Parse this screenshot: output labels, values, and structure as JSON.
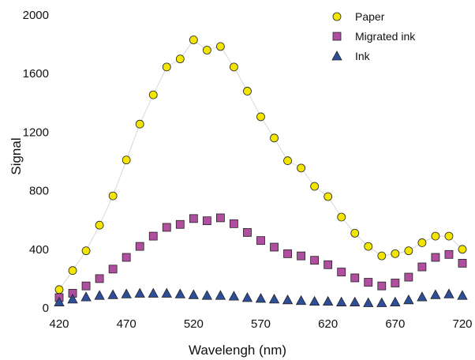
{
  "chart_data": {
    "type": "scatter",
    "xlabel": "Wavelengh (nm)",
    "ylabel": "Signal",
    "xlim": [
      420,
      720
    ],
    "ylim": [
      0,
      2000
    ],
    "x_ticks": [
      "420",
      "470",
      "520",
      "570",
      "620",
      "670",
      "720"
    ],
    "y_ticks": [
      "0",
      "400",
      "800",
      "1200",
      "1600",
      "2000"
    ],
    "grid": false,
    "legend_position": "top-right",
    "x": [
      420,
      430,
      440,
      450,
      460,
      470,
      480,
      490,
      500,
      510,
      520,
      530,
      540,
      550,
      560,
      570,
      580,
      590,
      600,
      610,
      620,
      630,
      640,
      650,
      660,
      670,
      680,
      690,
      700,
      710,
      720
    ],
    "series": [
      {
        "name": "Paper",
        "marker": "circle",
        "color": "#f2e600",
        "line_color": "#d8d8d8",
        "values": [
          125,
          255,
          390,
          565,
          765,
          1010,
          1255,
          1455,
          1645,
          1700,
          1830,
          1760,
          1785,
          1645,
          1480,
          1305,
          1160,
          1005,
          955,
          830,
          760,
          620,
          510,
          420,
          355,
          370,
          390,
          445,
          490,
          490,
          400
        ]
      },
      {
        "name": "Migrated ink",
        "marker": "square",
        "color": "#b04fa0",
        "values": [
          70,
          100,
          150,
          200,
          265,
          345,
          420,
          490,
          550,
          570,
          610,
          595,
          615,
          575,
          515,
          460,
          415,
          370,
          355,
          325,
          295,
          245,
          205,
          175,
          150,
          170,
          210,
          280,
          345,
          365,
          305
        ]
      },
      {
        "name": "Ink",
        "marker": "triangle",
        "color": "#2e4e9a",
        "values": [
          40,
          60,
          75,
          85,
          90,
          95,
          100,
          100,
          100,
          95,
          90,
          85,
          85,
          80,
          70,
          65,
          60,
          55,
          50,
          45,
          45,
          40,
          40,
          35,
          35,
          40,
          55,
          75,
          90,
          95,
          85
        ]
      }
    ]
  }
}
